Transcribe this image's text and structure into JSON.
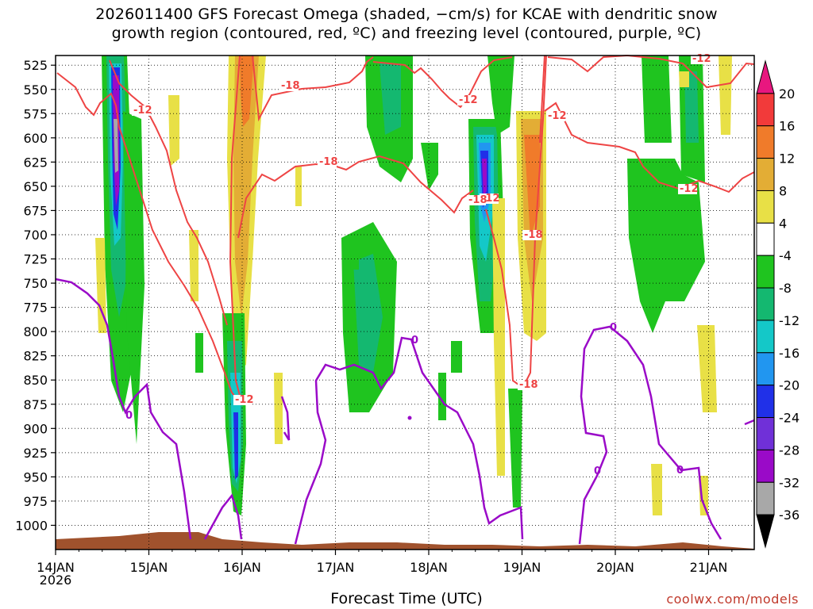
{
  "title_line1": "2026011400 GFS Forecast Omega (shaded, −cm/s) for KCAE with dendritic snow",
  "title_line2": "growth region (contoured, red, ºC) and freezing level (contoured, purple, ºC)",
  "xlabel": "Forecast Time (UTC)",
  "credit": "coolwx.com/models",
  "chart_data": {
    "type": "heatmap",
    "x_ticks": [
      "14JAN",
      "15JAN",
      "16JAN",
      "17JAN",
      "18JAN",
      "19JAN",
      "20JAN",
      "21JAN"
    ],
    "x_first_year": "2026",
    "y_ticks": [
      525,
      550,
      575,
      600,
      625,
      650,
      675,
      700,
      725,
      750,
      775,
      800,
      825,
      850,
      875,
      900,
      925,
      950,
      975,
      1000
    ],
    "y_reversed": true,
    "grid": true,
    "colorbar": {
      "labels": [
        "20",
        "16",
        "12",
        "8",
        "4",
        "-4",
        "-8",
        "-12",
        "-16",
        "-20",
        "-24",
        "-28",
        "-32",
        "-36"
      ],
      "colors": [
        "#e8177f",
        "#f23a3a",
        "#f07b2a",
        "#e3ad35",
        "#e8e046",
        "#ffffff",
        "#1fc41f",
        "#14b870",
        "#14c8c8",
        "#2196f0",
        "#2030e8",
        "#7030d8",
        "#9a0ac8",
        "#a8a8a8",
        "#000000"
      ]
    },
    "contour_colors": {
      "dgz": "#ee4444",
      "freezing": "#9a0ac8",
      "terrain": "#a0522d"
    },
    "dgz_labels": [
      "-12",
      "-18",
      "-18",
      "-12",
      "-12",
      "-18",
      "-12",
      "-12",
      "-18",
      "-12",
      "-12",
      "-18"
    ],
    "freezing_labels": [
      "0",
      "0",
      "0",
      "0",
      "0"
    ]
  }
}
